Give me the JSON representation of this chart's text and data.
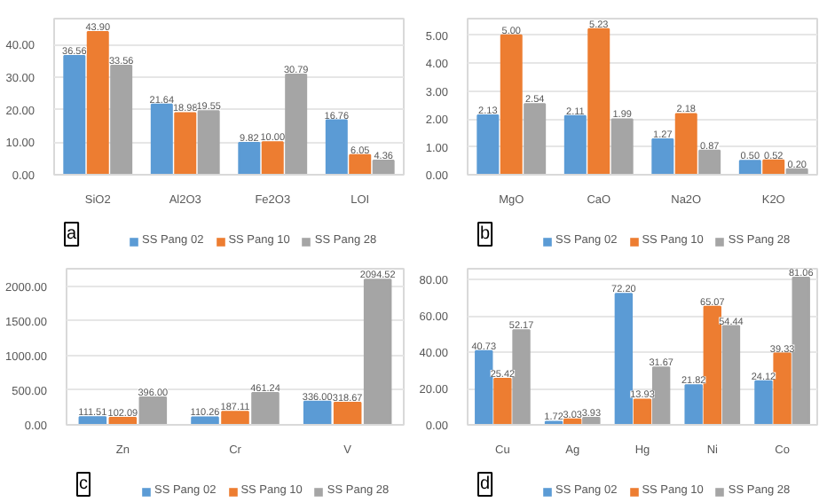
{
  "chart_data": [
    {
      "type": "bar",
      "categories": [
        "SiO2",
        "Al2O3",
        "Fe2O3",
        "LOI"
      ],
      "series": [
        {
          "name": "SS Pang 02",
          "color": "#5b9bd5",
          "values": [
            36.56,
            21.64,
            9.82,
            16.76
          ],
          "value_labels": [
            "36.56",
            "21.64",
            "9.82",
            "16.76"
          ]
        },
        {
          "name": "SS Pang 10",
          "color": "#ed7d31",
          "values": [
            43.9,
            18.98,
            10.0,
            6.05
          ],
          "value_labels": [
            "43.90",
            "18.98",
            "10.00",
            "6.05"
          ]
        },
        {
          "name": "SS Pang 28",
          "color": "#a5a5a5",
          "values": [
            33.56,
            19.55,
            30.79,
            4.36
          ],
          "value_labels": [
            "33.56",
            "19.55",
            "30.79",
            "4.36"
          ]
        }
      ],
      "ylim": [
        0,
        48
      ],
      "yticks": [
        {
          "value": 0,
          "label": "0.00"
        },
        {
          "value": 10,
          "label": "10.00"
        },
        {
          "value": 20,
          "label": "20.00"
        },
        {
          "value": 30,
          "label": "30.00"
        },
        {
          "value": 40,
          "label": "40.00"
        }
      ],
      "grid": "y",
      "legend": "bottom",
      "annotations": [
        "a"
      ]
    },
    {
      "type": "bar",
      "categories": [
        "MgO",
        "CaO",
        "Na2O",
        "K2O"
      ],
      "series": [
        {
          "name": "SS Pang 02",
          "color": "#5b9bd5",
          "values": [
            2.13,
            2.11,
            1.27,
            0.5
          ],
          "value_labels": [
            "2.13",
            "2.11",
            "1.27",
            "0.50"
          ]
        },
        {
          "name": "SS Pang 10",
          "color": "#ed7d31",
          "values": [
            5.0,
            5.23,
            2.18,
            0.52
          ],
          "value_labels": [
            "5.00",
            "5.23",
            "2.18",
            "0.52"
          ]
        },
        {
          "name": "SS Pang 28",
          "color": "#a5a5a5",
          "values": [
            2.54,
            1.99,
            0.87,
            0.2
          ],
          "value_labels": [
            "2.54",
            "1.99",
            "0.87",
            "0.20"
          ]
        }
      ],
      "ylim": [
        0,
        5.6
      ],
      "yticks": [
        {
          "value": 0,
          "label": "0.00"
        },
        {
          "value": 1,
          "label": "1.00"
        },
        {
          "value": 2,
          "label": "2.00"
        },
        {
          "value": 3,
          "label": "3.00"
        },
        {
          "value": 4,
          "label": "4.00"
        },
        {
          "value": 5,
          "label": "5.00"
        }
      ],
      "grid": "y",
      "legend": "bottom",
      "annotations": [
        "b"
      ]
    },
    {
      "type": "bar",
      "categories": [
        "Zn",
        "Cr",
        "V"
      ],
      "series": [
        {
          "name": "SS Pang 02",
          "color": "#5b9bd5",
          "values": [
            111.51,
            110.26,
            336.0
          ],
          "value_labels": [
            "111.51",
            "110.26",
            "336.00"
          ]
        },
        {
          "name": "SS Pang 10",
          "color": "#ed7d31",
          "values": [
            102.09,
            187.11,
            318.67
          ],
          "value_labels": [
            "102.09",
            "187.11",
            "318.67"
          ]
        },
        {
          "name": "SS Pang 28",
          "color": "#a5a5a5",
          "values": [
            396.0,
            461.24,
            2094.52
          ],
          "value_labels": [
            "396.00",
            "461.24",
            "2094.52"
          ]
        }
      ],
      "ylim": [
        0,
        2250
      ],
      "yticks": [
        {
          "value": 0,
          "label": "0.00"
        },
        {
          "value": 500,
          "label": "500.00"
        },
        {
          "value": 1000,
          "label": "1000.00"
        },
        {
          "value": 1500,
          "label": "1500.00"
        },
        {
          "value": 2000,
          "label": "2000.00"
        }
      ],
      "grid": "y",
      "legend": "bottom",
      "annotations": [
        "c"
      ]
    },
    {
      "type": "bar",
      "categories": [
        "Cu",
        "Ag",
        "Hg",
        "Ni",
        "Co"
      ],
      "series": [
        {
          "name": "SS Pang 02",
          "color": "#5b9bd5",
          "values": [
            40.73,
            1.72,
            72.2,
            21.82,
            24.12
          ],
          "value_labels": [
            "40.73",
            "1.72",
            "72.20",
            "21.82",
            "24.12"
          ]
        },
        {
          "name": "SS Pang 10",
          "color": "#ed7d31",
          "values": [
            25.42,
            3.03,
            13.93,
            65.07,
            39.33
          ],
          "value_labels": [
            "25.42",
            "3.03",
            "13.93",
            "65.07",
            "39.33"
          ]
        },
        {
          "name": "SS Pang 28",
          "color": "#a5a5a5",
          "values": [
            52.17,
            3.93,
            31.67,
            54.44,
            81.06
          ],
          "value_labels": [
            "52.17",
            "3.93",
            "31.67",
            "54.44",
            "81.06"
          ]
        }
      ],
      "ylim": [
        0,
        86
      ],
      "yticks": [
        {
          "value": 0,
          "label": "0.00"
        },
        {
          "value": 20,
          "label": "20.00"
        },
        {
          "value": 40,
          "label": "40.00"
        },
        {
          "value": 60,
          "label": "60.00"
        },
        {
          "value": 80,
          "label": "80.00"
        }
      ],
      "grid": "y",
      "legend": "bottom",
      "annotations": [
        "d"
      ]
    }
  ]
}
